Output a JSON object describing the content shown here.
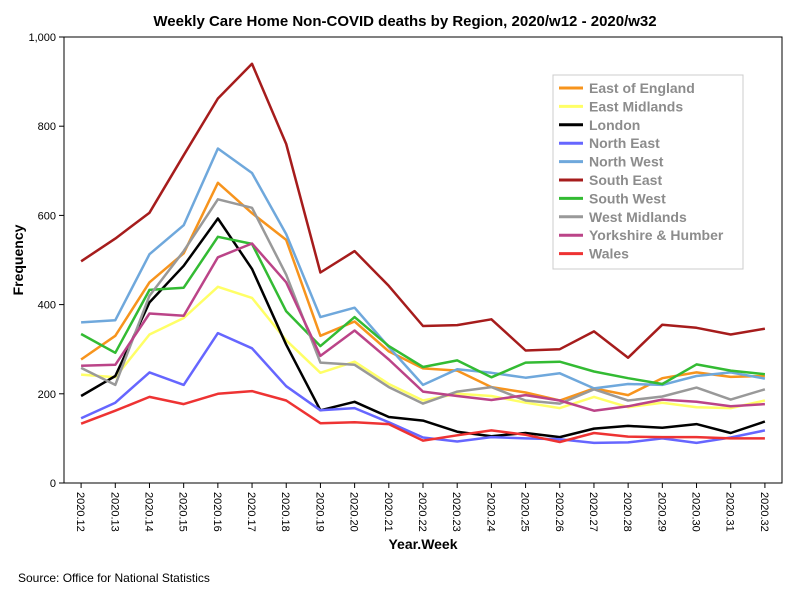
{
  "chart_data": {
    "type": "line",
    "title": "Weekly Care Home Non-COVID deaths by Region, 2020/w12 - 2020/w32",
    "xlabel": "Year.Week",
    "ylabel": "Frequency",
    "ylim": [
      0,
      1000
    ],
    "yticks": [
      0,
      200,
      400,
      600,
      800,
      1000
    ],
    "ytick_labels": [
      "0",
      "200",
      "400",
      "600",
      "800",
      "1,000"
    ],
    "legend_position": "top-right",
    "categories": [
      "2020.12",
      "2020.13",
      "2020.14",
      "2020.15",
      "2020.16",
      "2020.17",
      "2020.18",
      "2020.19",
      "2020.20",
      "2020.21",
      "2020.22",
      "2020.23",
      "2020.24",
      "2020.25",
      "2020.26",
      "2020.27",
      "2020.28",
      "2020.29",
      "2020.30",
      "2020.31",
      "2020.32"
    ],
    "series": [
      {
        "name": "East of England",
        "color": "#f7941d",
        "values": [
          277,
          330,
          450,
          515,
          673,
          605,
          545,
          330,
          362,
          295,
          257,
          252,
          215,
          203,
          185,
          212,
          197,
          235,
          248,
          238,
          240
        ]
      },
      {
        "name": "East Midlands",
        "color": "#ffff66",
        "values": [
          243,
          237,
          333,
          370,
          440,
          415,
          320,
          247,
          272,
          222,
          185,
          200,
          195,
          180,
          168,
          193,
          170,
          180,
          170,
          168,
          185
        ]
      },
      {
        "name": "London",
        "color": "#000000",
        "values": [
          195,
          240,
          405,
          487,
          593,
          480,
          310,
          163,
          182,
          148,
          140,
          115,
          105,
          112,
          103,
          122,
          128,
          124,
          132,
          112,
          138
        ]
      },
      {
        "name": "North East",
        "color": "#6666ff",
        "values": [
          145,
          180,
          248,
          220,
          336,
          302,
          217,
          163,
          168,
          136,
          102,
          93,
          103,
          100,
          98,
          90,
          91,
          100,
          90,
          102,
          118
        ]
      },
      {
        "name": "North West",
        "color": "#6fa8dc",
        "values": [
          360,
          365,
          513,
          578,
          750,
          695,
          558,
          372,
          393,
          305,
          220,
          255,
          247,
          236,
          246,
          212,
          222,
          220,
          240,
          248,
          234
        ]
      },
      {
        "name": "South East",
        "color": "#a61c1c",
        "values": [
          497,
          548,
          606,
          735,
          862,
          940,
          760,
          472,
          520,
          442,
          352,
          354,
          367,
          297,
          300,
          340,
          281,
          355,
          348,
          333,
          346
        ]
      },
      {
        "name": "South West",
        "color": "#33bb33",
        "values": [
          334,
          292,
          433,
          438,
          552,
          536,
          385,
          307,
          372,
          307,
          260,
          275,
          237,
          270,
          272,
          250,
          235,
          222,
          266,
          252,
          244
        ]
      },
      {
        "name": "West Midlands",
        "color": "#999999",
        "values": [
          258,
          220,
          420,
          520,
          636,
          617,
          467,
          270,
          265,
          215,
          178,
          205,
          215,
          185,
          178,
          210,
          185,
          194,
          214,
          187,
          210
        ]
      },
      {
        "name": "Yorkshire & Humber",
        "color": "#bb4488",
        "values": [
          263,
          265,
          380,
          375,
          506,
          537,
          450,
          285,
          342,
          277,
          205,
          195,
          186,
          197,
          185,
          162,
          172,
          187,
          182,
          172,
          177
        ]
      },
      {
        "name": "Wales",
        "color": "#ee3333",
        "values": [
          133,
          162,
          193,
          177,
          200,
          206,
          185,
          134,
          136,
          132,
          95,
          107,
          118,
          108,
          92,
          112,
          104,
          103,
          103,
          100,
          100
        ]
      }
    ]
  },
  "footer": {
    "source": "Source: Office for National Statistics"
  }
}
